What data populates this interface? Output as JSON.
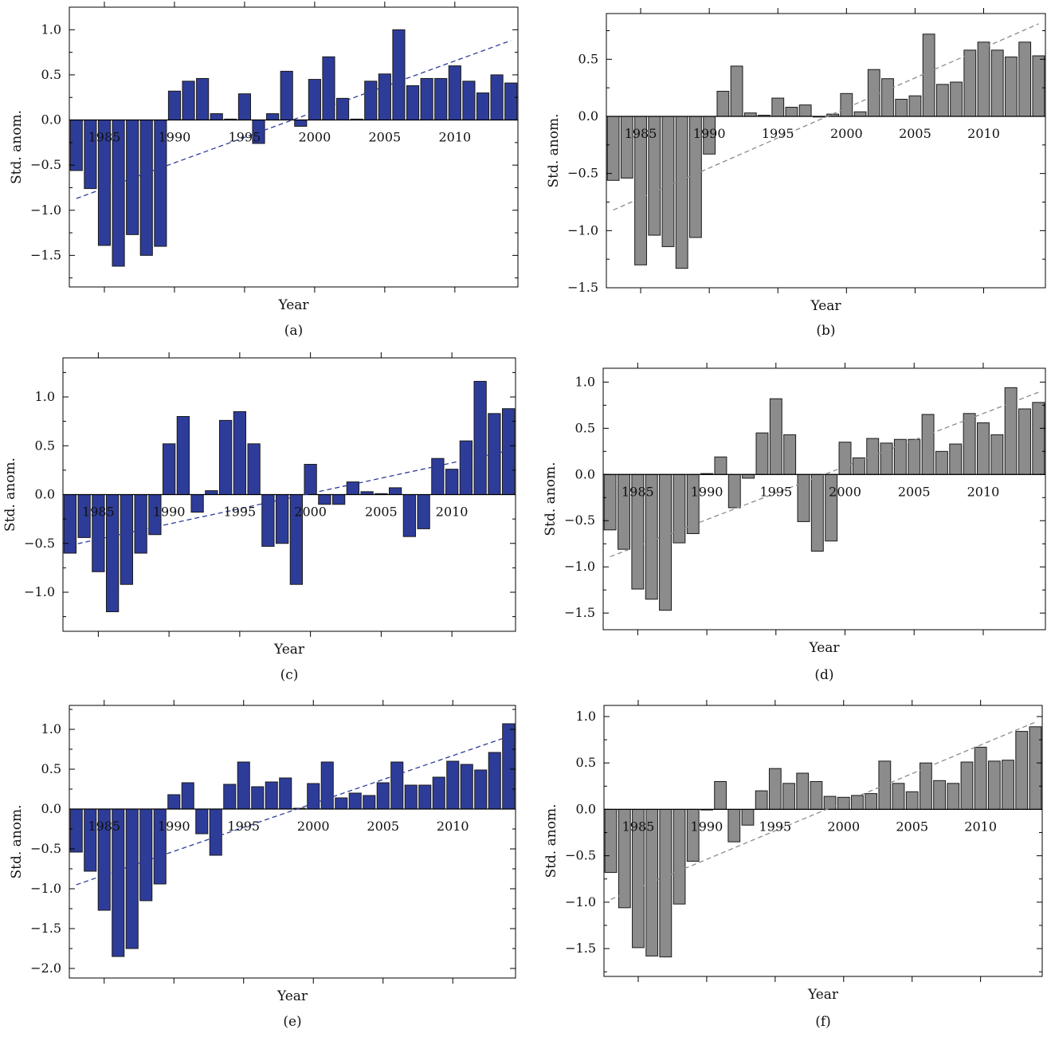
{
  "figure": {
    "panels": [
      "(a)",
      "(b)",
      "(c)",
      "(d)",
      "(e)",
      "(f)"
    ]
  },
  "chart_data": [
    {
      "type": "bar",
      "panel_label": "(a)",
      "xlabel": "Year",
      "ylabel": "Std. anom.",
      "x": [
        1983,
        1984,
        1985,
        1986,
        1987,
        1988,
        1989,
        1990,
        1991,
        1992,
        1993,
        1994,
        1995,
        1996,
        1997,
        1998,
        1999,
        2000,
        2001,
        2002,
        2003,
        2004,
        2005,
        2006,
        2007,
        2008,
        2009,
        2010,
        2011,
        2012,
        2013,
        2014
      ],
      "values": [
        -0.56,
        -0.76,
        -1.39,
        -1.62,
        -1.27,
        -1.5,
        -1.4,
        0.32,
        0.43,
        0.46,
        0.07,
        0.01,
        0.29,
        -0.26,
        0.07,
        0.54,
        -0.07,
        0.45,
        0.7,
        0.24,
        0.01,
        0.43,
        0.51,
        1.0,
        0.38,
        0.46,
        0.46,
        0.6,
        0.43,
        0.3,
        0.5,
        0.41
      ],
      "trend": [
        -0.87,
        0.88
      ],
      "xticks": [
        1985,
        1990,
        1995,
        2000,
        2005,
        2010
      ],
      "yticks": [
        -1.5,
        -1.0,
        -0.5,
        0.0,
        0.5,
        1.0
      ],
      "ylim": [
        -1.85,
        1.25
      ],
      "xlim": [
        1982.5,
        2014.5
      ],
      "bar_color": "#2e3c99",
      "trend_color": "#2e3c99",
      "grid": false
    },
    {
      "type": "bar",
      "panel_label": "(b)",
      "xlabel": "Year",
      "ylabel": "Std. anom.",
      "x": [
        1983,
        1984,
        1985,
        1986,
        1987,
        1988,
        1989,
        1990,
        1991,
        1992,
        1993,
        1994,
        1995,
        1996,
        1997,
        1998,
        1999,
        2000,
        2001,
        2002,
        2003,
        2004,
        2005,
        2006,
        2007,
        2008,
        2009,
        2010,
        2011,
        2012,
        2013,
        2014
      ],
      "values": [
        -0.56,
        -0.54,
        -1.3,
        -1.04,
        -1.14,
        -1.33,
        -1.06,
        -0.33,
        0.22,
        0.44,
        0.03,
        0.01,
        0.16,
        0.08,
        0.1,
        0.0,
        0.02,
        0.2,
        0.04,
        0.41,
        0.33,
        0.15,
        0.18,
        0.72,
        0.28,
        0.3,
        0.58,
        0.65,
        0.58,
        0.52,
        0.65,
        0.53
      ],
      "trend": [
        -0.82,
        0.81
      ],
      "xticks": [
        1985,
        1990,
        1995,
        2000,
        2005,
        2010
      ],
      "yticks": [
        -1.5,
        -1.0,
        -0.5,
        0.0,
        0.5
      ],
      "ylim": [
        -1.5,
        0.9
      ],
      "xlim": [
        1982.5,
        2014.5
      ],
      "bar_color": "#8c8c8c",
      "trend_color": "#8c8c8c",
      "grid": false
    },
    {
      "type": "bar",
      "panel_label": "(c)",
      "xlabel": "Year",
      "ylabel": "Std. anom.",
      "x": [
        1983,
        1984,
        1985,
        1986,
        1987,
        1988,
        1989,
        1990,
        1991,
        1992,
        1993,
        1994,
        1995,
        1996,
        1997,
        1998,
        1999,
        2000,
        2001,
        2002,
        2003,
        2004,
        2005,
        2006,
        2007,
        2008,
        2009,
        2010,
        2011,
        2012,
        2013,
        2014
      ],
      "values": [
        -0.6,
        -0.44,
        -0.79,
        -1.2,
        -0.92,
        -0.6,
        -0.41,
        0.52,
        0.8,
        -0.18,
        0.04,
        0.76,
        0.85,
        0.52,
        -0.53,
        -0.5,
        -0.92,
        0.31,
        -0.1,
        -0.1,
        0.13,
        0.03,
        0.01,
        0.07,
        -0.43,
        -0.35,
        0.37,
        0.26,
        0.55,
        1.16,
        0.83,
        0.88
      ],
      "trend": [
        -0.52,
        0.45
      ],
      "xticks": [
        1985,
        1990,
        1995,
        2000,
        2005,
        2010
      ],
      "yticks": [
        -1.0,
        -0.5,
        0.0,
        0.5,
        1.0
      ],
      "ylim": [
        -1.4,
        1.4
      ],
      "xlim": [
        1982.5,
        2014.5
      ],
      "bar_color": "#2e3c99",
      "trend_color": "#2e3c99",
      "grid": false
    },
    {
      "type": "bar",
      "panel_label": "(d)",
      "xlabel": "Year",
      "ylabel": "Std. anom.",
      "x": [
        1983,
        1984,
        1985,
        1986,
        1987,
        1988,
        1989,
        1990,
        1991,
        1992,
        1993,
        1994,
        1995,
        1996,
        1997,
        1998,
        1999,
        2000,
        2001,
        2002,
        2003,
        2004,
        2005,
        2006,
        2007,
        2008,
        2009,
        2010,
        2011,
        2012,
        2013,
        2014
      ],
      "values": [
        -0.6,
        -0.81,
        -1.24,
        -1.35,
        -1.47,
        -0.74,
        -0.64,
        0.01,
        0.19,
        -0.36,
        -0.04,
        0.45,
        0.82,
        0.43,
        -0.51,
        -0.83,
        -0.72,
        0.35,
        0.18,
        0.39,
        0.34,
        0.38,
        0.38,
        0.65,
        0.25,
        0.33,
        0.66,
        0.56,
        0.43,
        0.94,
        0.71,
        0.78
      ],
      "trend": [
        -0.89,
        0.89
      ],
      "xticks": [
        1985,
        1990,
        1995,
        2000,
        2005,
        2010
      ],
      "yticks": [
        -1.5,
        -1.0,
        -0.5,
        0.0,
        0.5,
        1.0
      ],
      "ylim": [
        -1.68,
        1.15
      ],
      "xlim": [
        1982.5,
        2014.5
      ],
      "bar_color": "#8c8c8c",
      "trend_color": "#8c8c8c",
      "grid": false
    },
    {
      "type": "bar",
      "panel_label": "(e)",
      "xlabel": "Year",
      "ylabel": "Std. anom.",
      "x": [
        1983,
        1984,
        1985,
        1986,
        1987,
        1988,
        1989,
        1990,
        1991,
        1992,
        1993,
        1994,
        1995,
        1996,
        1997,
        1998,
        1999,
        2000,
        2001,
        2002,
        2003,
        2004,
        2005,
        2006,
        2007,
        2008,
        2009,
        2010,
        2011,
        2012,
        2013,
        2014
      ],
      "values": [
        -0.54,
        -0.78,
        -1.27,
        -1.85,
        -1.75,
        -1.15,
        -0.94,
        0.18,
        0.33,
        -0.31,
        -0.58,
        0.31,
        0.59,
        0.28,
        0.34,
        0.39,
        0.01,
        0.32,
        0.59,
        0.14,
        0.2,
        0.17,
        0.33,
        0.59,
        0.3,
        0.3,
        0.4,
        0.6,
        0.56,
        0.49,
        0.71,
        1.07
      ],
      "trend": [
        -0.95,
        0.91
      ],
      "xticks": [
        1985,
        1990,
        1995,
        2000,
        2005,
        2010
      ],
      "yticks": [
        -2.0,
        -1.5,
        -1.0,
        -0.5,
        0.0,
        0.5,
        1.0
      ],
      "ylim": [
        -2.12,
        1.3
      ],
      "xlim": [
        1982.5,
        2014.5
      ],
      "bar_color": "#2e3c99",
      "trend_color": "#2e3c99",
      "grid": false
    },
    {
      "type": "bar",
      "panel_label": "(f)",
      "xlabel": "Year",
      "ylabel": "Std. anom.",
      "x": [
        1983,
        1984,
        1985,
        1986,
        1987,
        1988,
        1989,
        1990,
        1991,
        1992,
        1993,
        1994,
        1995,
        1996,
        1997,
        1998,
        1999,
        2000,
        2001,
        2002,
        2003,
        2004,
        2005,
        2006,
        2007,
        2008,
        2009,
        2010,
        2011,
        2012,
        2013,
        2014
      ],
      "values": [
        -0.68,
        -1.06,
        -1.49,
        -1.58,
        -1.59,
        -1.02,
        -0.56,
        0.0,
        0.3,
        -0.35,
        -0.17,
        0.2,
        0.44,
        0.28,
        0.39,
        0.3,
        0.14,
        0.13,
        0.15,
        0.17,
        0.52,
        0.28,
        0.19,
        0.5,
        0.31,
        0.28,
        0.51,
        0.67,
        0.52,
        0.53,
        0.84,
        0.89
      ],
      "trend": [
        -0.97,
        0.94
      ],
      "xticks": [
        1985,
        1990,
        1995,
        2000,
        2005,
        2010
      ],
      "yticks": [
        -1.5,
        -1.0,
        -0.5,
        0.0,
        0.5,
        1.0
      ],
      "ylim": [
        -1.8,
        1.12
      ],
      "xlim": [
        1982.5,
        2014.5
      ],
      "bar_color": "#8c8c8c",
      "trend_color": "#8c8c8c",
      "grid": false
    }
  ]
}
